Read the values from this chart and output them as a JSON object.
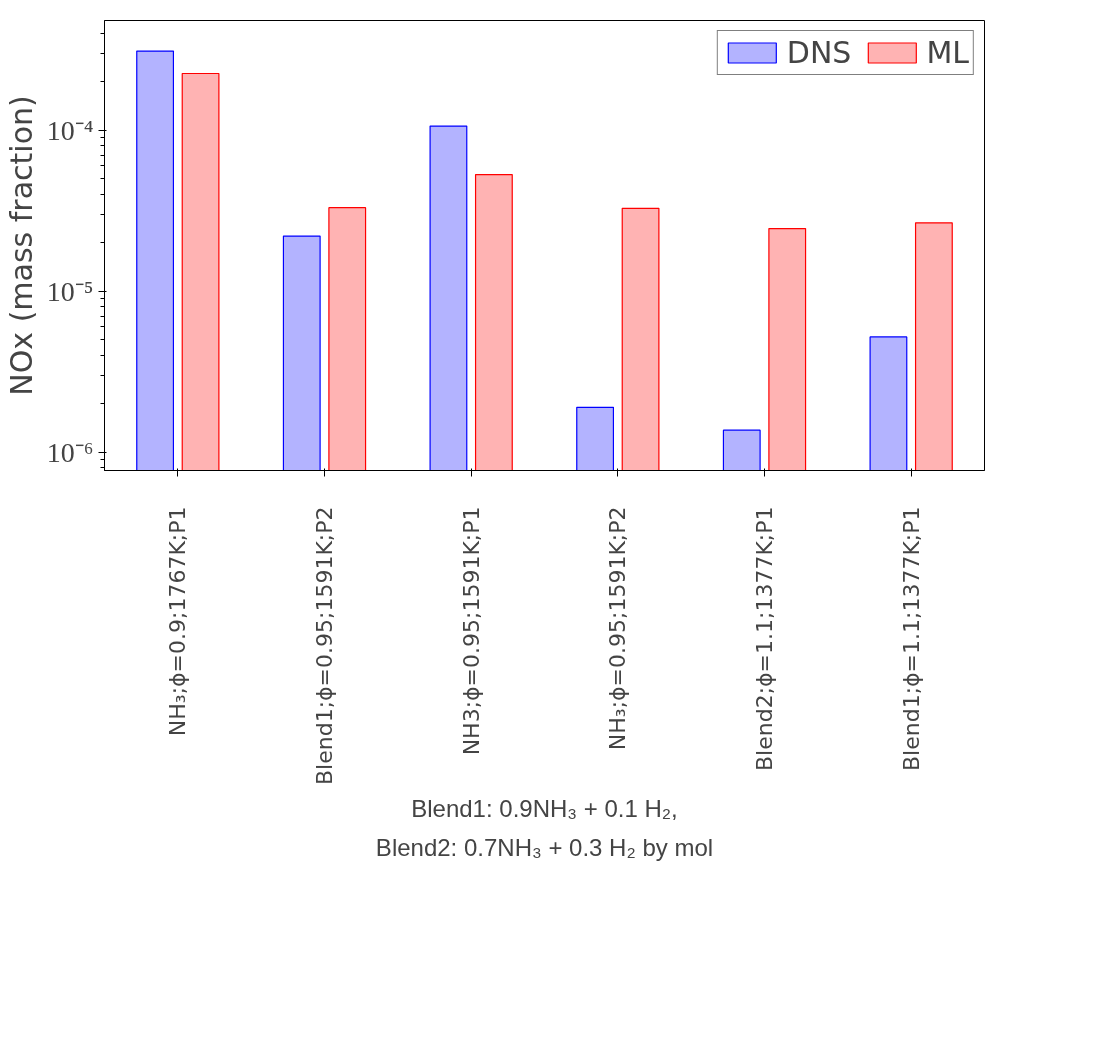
{
  "chart_data": {
    "type": "bar",
    "ylabel": "NOx (mass fraction)",
    "categories": [
      "NH₃;ϕ=0.9;1767K;P1",
      "Blend1;ϕ=0.95;1591K;P2",
      "NH3;ϕ=0.95;1591K;P1",
      "NH₃;ϕ=0.95;1591K;P2",
      "Blend2;ϕ=1.1;1377K;P1",
      "Blend1;ϕ=1.1;1377K;P1"
    ],
    "series": [
      {
        "name": "DNS",
        "color": "#b3b3ff",
        "values": [
          0.00031,
          2.2e-05,
          0.000106,
          1.9e-06,
          1.37e-06,
          5.2e-06
        ]
      },
      {
        "name": "ML",
        "color": "#ffb3b3",
        "values": [
          0.000225,
          3.3e-05,
          5.3e-05,
          3.27e-05,
          2.45e-05,
          2.66e-05
        ]
      }
    ],
    "log": true,
    "ylim": [
      7.7e-07,
      0.00048
    ],
    "yticks": [
      {
        "value": 1e-06,
        "label": "10⁻⁶"
      },
      {
        "value": 1e-05,
        "label": "10⁻⁵"
      },
      {
        "value": 0.0001,
        "label": "10⁻⁴"
      }
    ],
    "grid": false,
    "legend": "top right",
    "annotations": [
      "Blend1: 0.9NH₃ + 0.1 H₂,",
      "Blend2: 0.7NH₃ + 0.3 H₂ by mol"
    ]
  }
}
